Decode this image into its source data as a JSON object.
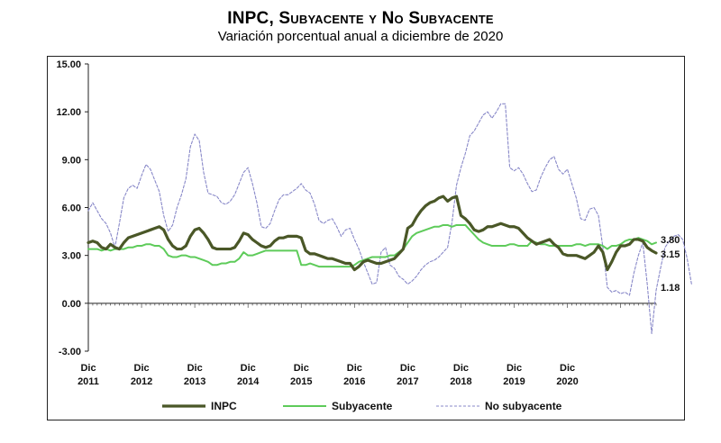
{
  "chart_data": {
    "type": "line",
    "title": "INPC, Subyacente y No Subyacente",
    "subtitle": "Variación porcentual anual a diciembre de 2020",
    "xlabel": "",
    "ylabel": "",
    "ylim": [
      -3.0,
      15.0
    ],
    "yticks": [
      "15.00",
      "12.00",
      "9.00",
      "6.00",
      "3.00",
      "0.00",
      "-3.00"
    ],
    "ytick_values": [
      15,
      12,
      9,
      6,
      3,
      0,
      -3
    ],
    "xticks": [
      {
        "line1": "Dic",
        "line2": "2011",
        "index": 0
      },
      {
        "line1": "Dic",
        "line2": "2012",
        "index": 12
      },
      {
        "line1": "Dic",
        "line2": "2013",
        "index": 24
      },
      {
        "line1": "Dic",
        "line2": "2014",
        "index": 36
      },
      {
        "line1": "Dic",
        "line2": "2015",
        "index": 48
      },
      {
        "line1": "Dic",
        "line2": "2016",
        "index": 60
      },
      {
        "line1": "Dic",
        "line2": "2017",
        "index": 72
      },
      {
        "line1": "Dic",
        "line2": "2018",
        "index": 84
      },
      {
        "line1": "Dic",
        "line2": "2019",
        "index": 96
      },
      {
        "line1": "Dic",
        "line2": "2020",
        "index": 108
      }
    ],
    "grid": false,
    "legend_position": "bottom",
    "end_labels": [
      "3.80",
      "3.15",
      "1.18"
    ],
    "series": [
      {
        "name": "INPC",
        "color": "#4a5727",
        "values": [
          3.8,
          3.9,
          3.8,
          3.5,
          3.4,
          3.7,
          3.5,
          3.4,
          3.8,
          4.1,
          4.2,
          4.3,
          4.4,
          4.5,
          4.6,
          4.7,
          4.8,
          4.6,
          4.0,
          3.6,
          3.4,
          3.4,
          3.6,
          4.2,
          4.6,
          4.7,
          4.4,
          4.0,
          3.5,
          3.4,
          3.4,
          3.4,
          3.4,
          3.5,
          3.9,
          4.4,
          4.3,
          4.0,
          3.8,
          3.6,
          3.5,
          3.6,
          3.9,
          4.1,
          4.1,
          4.2,
          4.2,
          4.2,
          4.1,
          3.3,
          3.1,
          3.1,
          3.0,
          2.9,
          2.8,
          2.8,
          2.7,
          2.6,
          2.5,
          2.5,
          2.1,
          2.3,
          2.6,
          2.7,
          2.6,
          2.5,
          2.5,
          2.6,
          2.7,
          2.8,
          3.1,
          3.4,
          4.7,
          4.9,
          5.4,
          5.8,
          6.1,
          6.3,
          6.4,
          6.6,
          6.7,
          6.4,
          6.6,
          6.7,
          5.5,
          5.3,
          5.0,
          4.6,
          4.5,
          4.6,
          4.8,
          4.8,
          4.9,
          5.0,
          4.9,
          4.8,
          4.8,
          4.7,
          4.4,
          4.1,
          3.9,
          3.7,
          3.8,
          3.9,
          4.0,
          3.7,
          3.5,
          3.1,
          3.0,
          3.0,
          3.0,
          2.9,
          2.8,
          3.0,
          3.2,
          3.6,
          3.2,
          2.1,
          2.6,
          3.2,
          3.6,
          3.6,
          3.7,
          4.0,
          4.0,
          3.9,
          3.5,
          3.3,
          3.15
        ],
        "end_label": "3.15"
      },
      {
        "name": "Subyacente",
        "color": "#5ecb5a",
        "values": [
          3.4,
          3.4,
          3.4,
          3.3,
          3.4,
          3.3,
          3.4,
          3.4,
          3.4,
          3.5,
          3.5,
          3.6,
          3.6,
          3.7,
          3.7,
          3.6,
          3.6,
          3.4,
          3.0,
          2.9,
          2.9,
          3.0,
          3.0,
          2.9,
          2.9,
          2.8,
          2.7,
          2.6,
          2.4,
          2.4,
          2.5,
          2.5,
          2.6,
          2.6,
          2.8,
          3.2,
          3.0,
          3.0,
          3.1,
          3.2,
          3.3,
          3.3,
          3.3,
          3.3,
          3.3,
          3.3,
          3.3,
          3.3,
          2.4,
          2.4,
          2.5,
          2.4,
          2.3,
          2.3,
          2.3,
          2.3,
          2.3,
          2.3,
          2.3,
          2.3,
          2.4,
          2.6,
          2.7,
          2.8,
          2.9,
          2.9,
          2.9,
          2.9,
          3.0,
          3.0,
          3.2,
          3.4,
          3.8,
          4.2,
          4.4,
          4.5,
          4.6,
          4.7,
          4.8,
          4.8,
          4.9,
          4.9,
          4.8,
          4.9,
          4.9,
          4.9,
          4.6,
          4.3,
          4.0,
          3.8,
          3.7,
          3.6,
          3.6,
          3.6,
          3.6,
          3.7,
          3.7,
          3.6,
          3.6,
          3.6,
          3.9,
          3.8,
          3.7,
          3.7,
          3.6,
          3.6,
          3.6,
          3.6,
          3.6,
          3.6,
          3.7,
          3.7,
          3.6,
          3.7,
          3.7,
          3.7,
          3.6,
          3.4,
          3.6,
          3.6,
          3.7,
          3.9,
          4.0,
          4.0,
          4.1,
          4.0,
          3.9,
          3.7,
          3.8
        ],
        "end_label": "3.80"
      },
      {
        "name": "No subyacente",
        "color": "#8888c8",
        "dashed": true,
        "values": [
          5.8,
          6.3,
          5.8,
          5.3,
          5.0,
          4.4,
          3.5,
          5.0,
          6.6,
          7.2,
          7.4,
          7.2,
          8.0,
          8.7,
          8.4,
          7.7,
          7.0,
          5.5,
          4.5,
          4.9,
          6.0,
          6.8,
          7.8,
          9.8,
          10.6,
          10.2,
          8.2,
          6.9,
          6.8,
          6.7,
          6.3,
          6.2,
          6.4,
          6.8,
          7.5,
          8.2,
          8.5,
          7.5,
          6.3,
          4.8,
          4.7,
          5.0,
          5.8,
          6.5,
          6.8,
          6.8,
          7.0,
          7.2,
          7.5,
          7.1,
          6.9,
          6.2,
          5.2,
          5.0,
          5.2,
          5.3,
          4.8,
          4.2,
          4.6,
          4.7,
          4.0,
          3.4,
          2.6,
          1.9,
          1.2,
          1.3,
          3.2,
          3.5,
          2.4,
          2.2,
          1.7,
          1.5,
          1.2,
          1.4,
          1.7,
          2.1,
          2.4,
          2.6,
          2.7,
          2.9,
          3.2,
          3.5,
          5.1,
          7.4,
          8.5,
          9.4,
          10.5,
          10.8,
          11.3,
          11.8,
          12.0,
          11.6,
          12.0,
          12.5,
          12.5,
          8.5,
          8.3,
          8.5,
          8.1,
          7.5,
          7.0,
          7.1,
          7.9,
          8.5,
          9.0,
          9.2,
          8.4,
          8.1,
          8.4,
          7.5,
          6.6,
          5.3,
          5.2,
          5.9,
          6.0,
          5.5,
          3.5,
          1.0,
          0.7,
          0.8,
          0.6,
          0.7,
          0.5,
          1.9,
          3.0,
          3.8,
          1.2,
          -1.9,
          0.8,
          2.2,
          3.5,
          3.9,
          4.2,
          4.3,
          4.0,
          2.8,
          1.18
        ],
        "end_label": "1.18"
      }
    ]
  }
}
